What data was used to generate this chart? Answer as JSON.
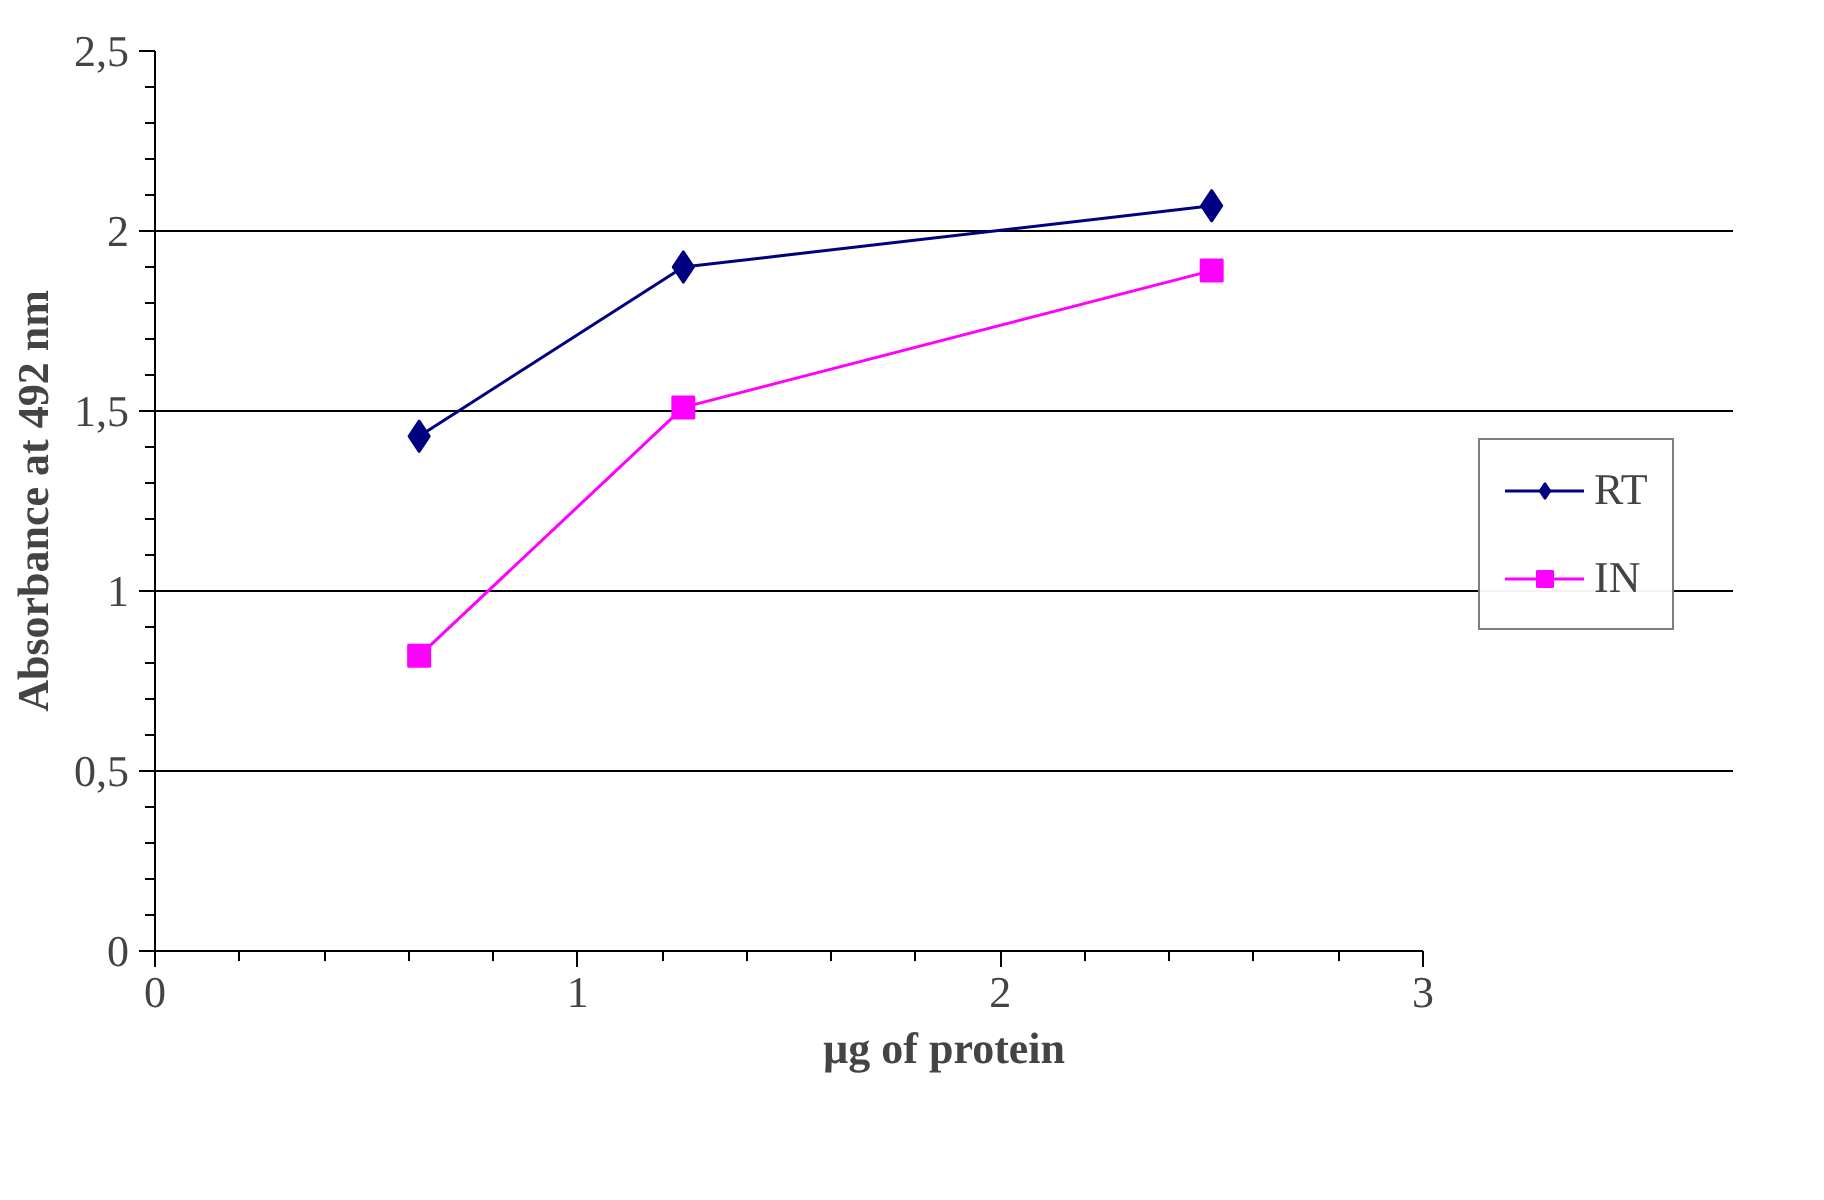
{
  "chart_data": {
    "type": "line",
    "xlabel": "µg of protein",
    "ylabel": "Absorbance at 492 nm",
    "x": [
      0.625,
      1.25,
      2.5
    ],
    "series": [
      {
        "name": "RT",
        "color": "#000080",
        "values": [
          1.43,
          1.9,
          2.07
        ],
        "marker": "diamond"
      },
      {
        "name": "IN",
        "color": "#ff00ff",
        "values": [
          0.82,
          1.51,
          1.89
        ],
        "marker": "square"
      }
    ],
    "xlim": [
      0,
      3
    ],
    "ylim": [
      0,
      2.5
    ],
    "xticks": [
      0,
      {
        "value": 0.2,
        "label": null
      },
      {
        "value": 0.4,
        "label": null
      },
      {
        "value": 0.6,
        "label": null
      },
      {
        "value": 0.8,
        "label": null
      },
      1,
      {
        "value": 1.2,
        "label": null
      },
      {
        "value": 1.4,
        "label": null
      },
      {
        "value": 1.6,
        "label": null
      },
      {
        "value": 1.8,
        "label": null
      },
      2,
      {
        "value": 2.2,
        "label": null
      },
      {
        "value": 2.4,
        "label": null
      },
      {
        "value": 2.6,
        "label": null
      },
      {
        "value": 2.8,
        "label": null
      },
      3
    ],
    "yticks": [
      0,
      {
        "value": 0.1,
        "label": null
      },
      {
        "value": 0.2,
        "label": null
      },
      {
        "value": 0.3,
        "label": null
      },
      {
        "value": 0.4,
        "label": null
      },
      {
        "value": 0.5,
        "label": "0,5"
      },
      {
        "value": 0.6,
        "label": null
      },
      {
        "value": 0.7,
        "label": null
      },
      {
        "value": 0.8,
        "label": null
      },
      {
        "value": 0.9,
        "label": null
      },
      1,
      {
        "value": 1.1,
        "label": null
      },
      {
        "value": 1.2,
        "label": null
      },
      {
        "value": 1.3,
        "label": null
      },
      {
        "value": 1.4,
        "label": null
      },
      {
        "value": 1.5,
        "label": "1,5"
      },
      {
        "value": 1.6,
        "label": null
      },
      {
        "value": 1.7,
        "label": null
      },
      {
        "value": 1.8,
        "label": null
      },
      {
        "value": 1.9,
        "label": null
      },
      2,
      {
        "value": 2.1,
        "label": null
      },
      {
        "value": 2.2,
        "label": null
      },
      {
        "value": 2.3,
        "label": null
      },
      {
        "value": 2.4,
        "label": null
      },
      {
        "value": 2.5,
        "label": "2,5"
      }
    ],
    "grid": "y",
    "legend": "right",
    "line_style": "solid"
  }
}
